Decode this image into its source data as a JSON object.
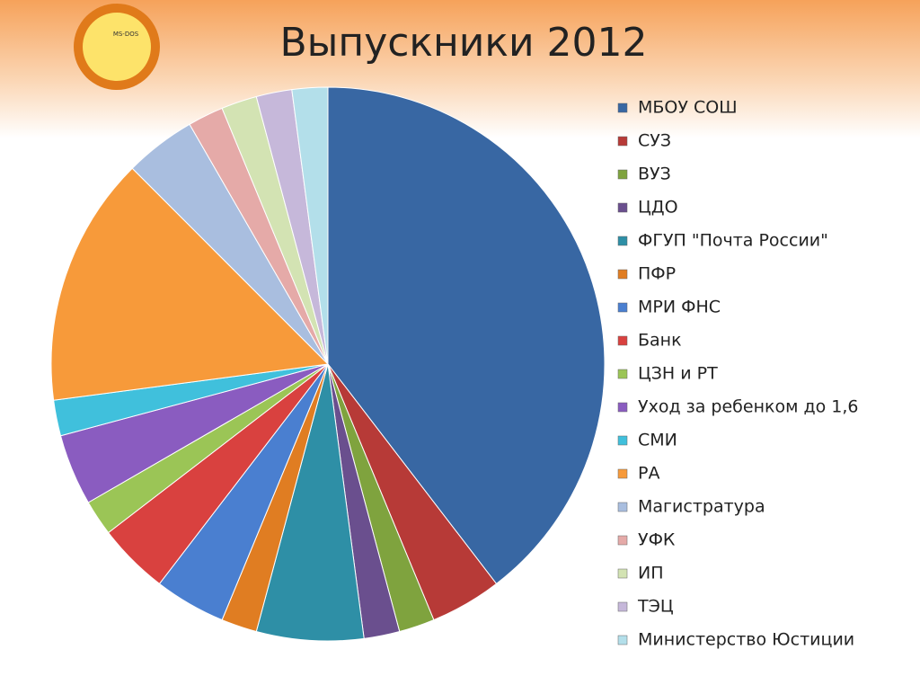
{
  "logo": {
    "text": "MS-DOS"
  },
  "chart_data": {
    "type": "pie",
    "title": "Выпускники 2012",
    "categories": [
      "МБОУ СОШ",
      "СУЗ",
      "ВУЗ",
      "ЦДО",
      "ФГУП \"Почта России\"",
      "ПФР",
      "МРИ ФНС",
      "Банк",
      "ЦЗН и РТ",
      "Уход за ребенком до 1,6",
      "СМИ",
      "РА",
      "Магистратура",
      "УФК",
      "ИП",
      "ТЭЦ",
      "Министерство Юстиции"
    ],
    "values": [
      19,
      2,
      1,
      1,
      3,
      1,
      2,
      2,
      1,
      2,
      1,
      7,
      2,
      1,
      1,
      1,
      1
    ],
    "colors": [
      "#3867a3",
      "#b73a37",
      "#7fa33e",
      "#6a4f8e",
      "#2e8fa6",
      "#e07d22",
      "#4a7fd0",
      "#d9413f",
      "#9bc556",
      "#8a5cc0",
      "#40c0dc",
      "#f79a3a",
      "#a9bedf",
      "#e5aaa8",
      "#d3e3b3",
      "#c6b8da",
      "#b3dfea"
    ],
    "legend": "right"
  }
}
